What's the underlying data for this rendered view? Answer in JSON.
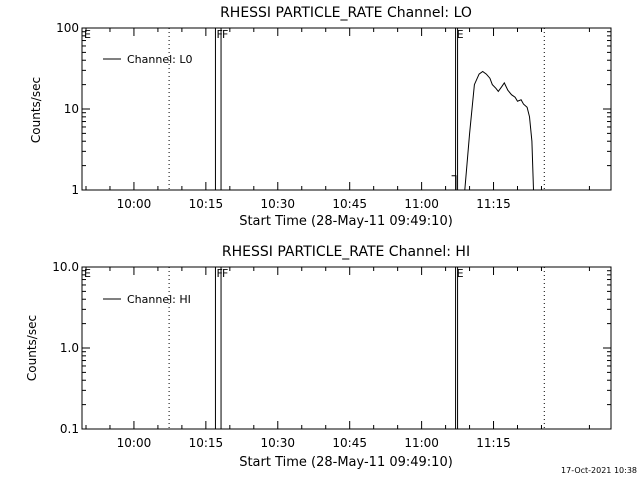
{
  "plot_style": {
    "background": "#ffffff",
    "foreground": "#000000"
  },
  "footer": {
    "timestamp": "17-Oct-2021 10:38"
  },
  "chart_data": [
    {
      "type": "line",
      "title": "RHESSI PARTICLE_RATE Channel: LO",
      "xlabel": "Start Time (28-May-11 09:49:10)",
      "ylabel": "Counts/sec",
      "y_scale": "log",
      "ylim": [
        1,
        100
      ],
      "y_ticks": [
        {
          "value": 1,
          "label": "1"
        },
        {
          "value": 10,
          "label": "10"
        },
        {
          "value": 100,
          "label": "100"
        }
      ],
      "xlim": [
        "09:49:10",
        "11:39:30"
      ],
      "x_ticks": [
        "10:00",
        "10:15",
        "10:30",
        "10:45",
        "11:00",
        "11:15"
      ],
      "legend": {
        "position": "top-left",
        "entries": [
          "Channel: L0"
        ]
      },
      "grid": false,
      "markers": [
        {
          "time": "10:07:20",
          "style": "dotted",
          "label": ""
        },
        {
          "time": "10:17:00",
          "style": "solid",
          "label": "F"
        },
        {
          "time": "10:18:10",
          "style": "solid",
          "label": "F"
        },
        {
          "time": "11:07:05",
          "style": "solid",
          "label": "E"
        },
        {
          "time": "11:07:30",
          "style": "solid",
          "label": ""
        },
        {
          "time": "11:25:35",
          "style": "dotted",
          "label": ""
        }
      ],
      "series": [
        {
          "name": "Channel: L0",
          "points": [
            [
              "11:06:15",
              1.5
            ],
            [
              "11:07:10",
              1.5
            ],
            [
              "11:07:10",
              1
            ],
            [
              "11:09:00",
              1
            ],
            [
              "11:10:00",
              5
            ],
            [
              "11:11:00",
              20
            ],
            [
              "11:12:00",
              27
            ],
            [
              "11:12:45",
              29
            ],
            [
              "11:13:30",
              27
            ],
            [
              "11:14:15",
              24
            ],
            [
              "11:14:45",
              20
            ],
            [
              "11:15:30",
              18
            ],
            [
              "11:16:00",
              16.5
            ],
            [
              "11:16:45",
              19
            ],
            [
              "11:17:15",
              21
            ],
            [
              "11:18:00",
              17
            ],
            [
              "11:18:45",
              15
            ],
            [
              "11:19:30",
              14
            ],
            [
              "11:20:00",
              12.5
            ],
            [
              "11:20:45",
              13
            ],
            [
              "11:21:15",
              11.5
            ],
            [
              "11:22:00",
              10.5
            ],
            [
              "11:22:30",
              8
            ],
            [
              "11:23:00",
              4
            ],
            [
              "11:23:20",
              1
            ]
          ]
        }
      ]
    },
    {
      "type": "line",
      "title": "RHESSI PARTICLE_RATE Channel: HI",
      "xlabel": "Start Time (28-May-11 09:49:10)",
      "ylabel": "Counts/sec",
      "y_scale": "log",
      "ylim": [
        0.1,
        10
      ],
      "y_ticks": [
        {
          "value": 0.1,
          "label": "0.1"
        },
        {
          "value": 1,
          "label": "1.0"
        },
        {
          "value": 10,
          "label": "10.0"
        }
      ],
      "xlim": [
        "09:49:10",
        "11:39:30"
      ],
      "x_ticks": [
        "10:00",
        "10:15",
        "10:30",
        "10:45",
        "11:00",
        "11:15"
      ],
      "legend": {
        "position": "top-left",
        "entries": [
          "Channel: HI"
        ]
      },
      "grid": false,
      "markers": [
        {
          "time": "10:07:20",
          "style": "dotted",
          "label": ""
        },
        {
          "time": "10:17:00",
          "style": "solid",
          "label": "F"
        },
        {
          "time": "10:18:10",
          "style": "solid",
          "label": "F"
        },
        {
          "time": "11:07:05",
          "style": "solid",
          "label": "E"
        },
        {
          "time": "11:07:30",
          "style": "solid",
          "label": ""
        },
        {
          "time": "11:25:35",
          "style": "dotted",
          "label": ""
        }
      ],
      "series": [
        {
          "name": "Channel: HI",
          "points": []
        }
      ]
    }
  ]
}
